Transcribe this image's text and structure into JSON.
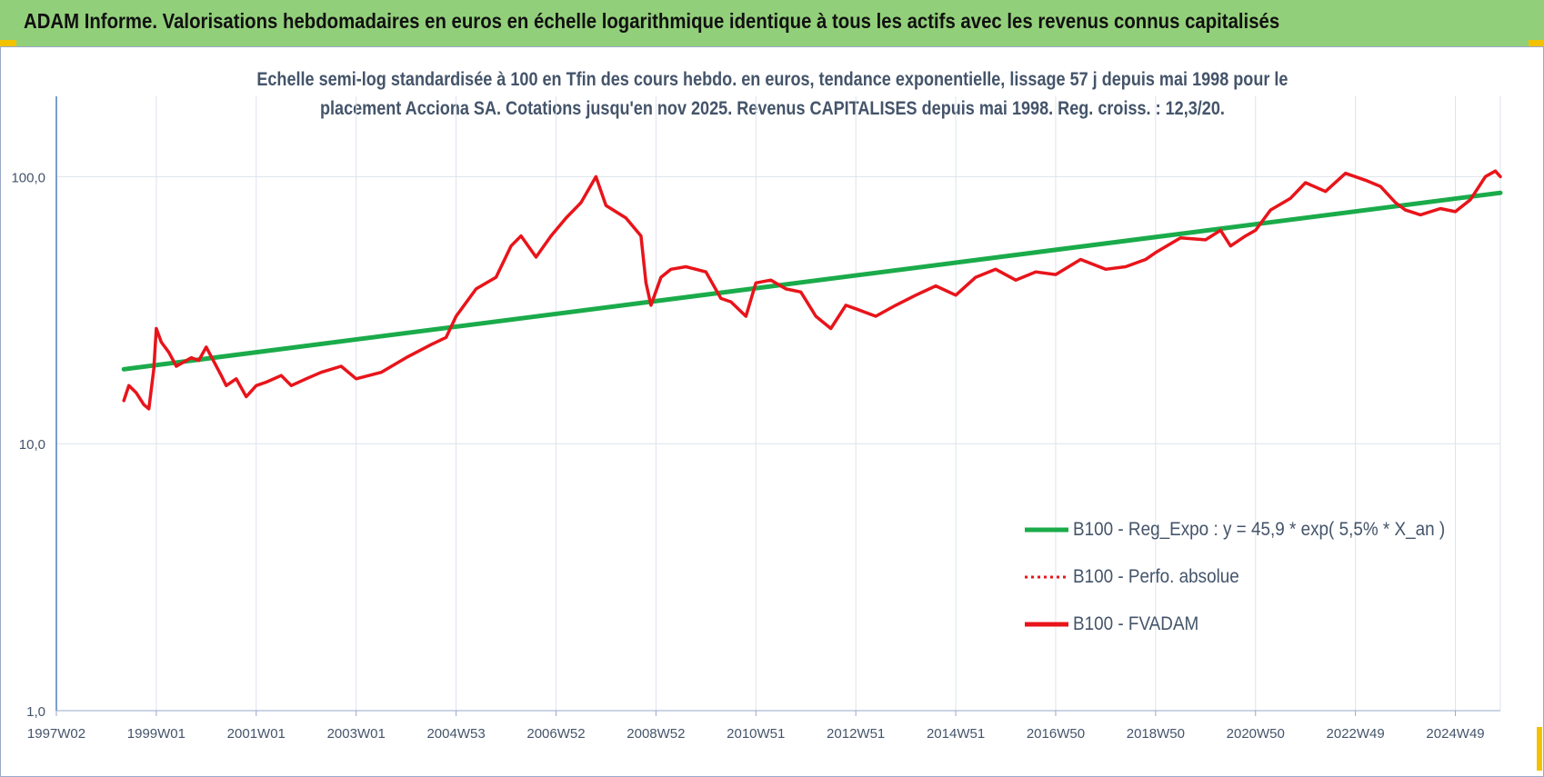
{
  "header": {
    "title": "ADAM Informe. Valorisations hebdomadaires en euros en échelle logarithmique identique à tous les actifs avec les revenus connus capitalisés"
  },
  "colors": {
    "header_bg": "#92cf7a",
    "corner_accent": "#f2c200",
    "fvadam": "#e8141a",
    "regression": "#1aab4a",
    "perfo": "#e8141a",
    "text": "#44546a"
  },
  "chart_data": {
    "type": "line",
    "title_lines": [
      "Echelle semi-log standardisée à 100 en Tfin des cours hebdo. en euros, tendance exponentielle, lissage 57 j depuis mai 1998 pour le",
      "placement Acciona SA. Cotations jusqu'en nov 2025. Revenus CAPITALISES depuis mai 1998. Reg. croiss. : 12,3/20."
    ],
    "y_scale": "log",
    "ylim": [
      1,
      200
    ],
    "y_ticks": [
      {
        "value": 100,
        "label": "100,0"
      },
      {
        "value": 10,
        "label": "10,0"
      },
      {
        "value": 1,
        "label": "1,0"
      }
    ],
    "xlim": [
      1997.0,
      2025.9
    ],
    "x_ticks": [
      {
        "value": 1997.0,
        "label": "1997W02"
      },
      {
        "value": 1999.0,
        "label": "1999W01"
      },
      {
        "value": 2001.0,
        "label": "2001W01"
      },
      {
        "value": 2003.0,
        "label": "2003W01"
      },
      {
        "value": 2005.0,
        "label": "2004W53"
      },
      {
        "value": 2007.0,
        "label": "2006W52"
      },
      {
        "value": 2009.0,
        "label": "2008W52"
      },
      {
        "value": 2011.0,
        "label": "2010W51"
      },
      {
        "value": 2013.0,
        "label": "2012W51"
      },
      {
        "value": 2015.0,
        "label": "2014W51"
      },
      {
        "value": 2017.0,
        "label": "2016W50"
      },
      {
        "value": 2019.0,
        "label": "2018W50"
      },
      {
        "value": 2021.0,
        "label": "2020W50"
      },
      {
        "value": 2023.0,
        "label": "2022W49"
      },
      {
        "value": 2025.0,
        "label": "2024W49"
      }
    ],
    "grid": "vertical",
    "legend_position": "right",
    "legend": [
      {
        "name": "B100 - Reg_Expo : y = 45,9 * exp( 5,5% *  X_an )",
        "style": "solid",
        "color": "#1aab4a"
      },
      {
        "name": "B100 - Perfo. absolue",
        "style": "dotted",
        "color": "#e8141a"
      },
      {
        "name": "B100 - FVADAM",
        "style": "solid",
        "color": "#e8141a"
      }
    ],
    "series": [
      {
        "name": "B100 - Reg_Expo : y = 45,9 * exp( 5,5% *  X_an )",
        "x": [
          1998.35,
          2025.9
        ],
        "y": [
          19.0,
          87.0
        ]
      },
      {
        "name": "B100 - FVADAM",
        "x": [
          1998.35,
          1998.45,
          1998.6,
          1998.75,
          1998.85,
          1998.95,
          1999.0,
          1999.1,
          1999.25,
          1999.4,
          1999.5,
          1999.7,
          1999.85,
          2000.0,
          2000.3,
          2000.4,
          2000.6,
          2000.8,
          2001.0,
          2001.2,
          2001.5,
          2001.7,
          2002.0,
          2002.3,
          2002.7,
          2003.0,
          2003.5,
          2004.0,
          2004.5,
          2004.8,
          2005.0,
          2005.4,
          2005.8,
          2006.1,
          2006.3,
          2006.6,
          2006.9,
          2007.2,
          2007.5,
          2007.8,
          2008.0,
          2008.4,
          2008.7,
          2008.8,
          2008.9,
          2009.1,
          2009.3,
          2009.6,
          2010.0,
          2010.3,
          2010.5,
          2010.8,
          2011.0,
          2011.3,
          2011.6,
          2011.9,
          2012.2,
          2012.5,
          2012.8,
          2013.0,
          2013.4,
          2013.8,
          2014.2,
          2014.6,
          2015.0,
          2015.4,
          2015.8,
          2016.2,
          2016.6,
          2017.0,
          2017.5,
          2018.0,
          2018.4,
          2018.8,
          2019.0,
          2019.5,
          2020.0,
          2020.3,
          2020.5,
          2020.8,
          2021.0,
          2021.3,
          2021.7,
          2022.0,
          2022.4,
          2022.8,
          2023.2,
          2023.5,
          2023.8,
          2024.0,
          2024.3,
          2024.7,
          2025.0,
          2025.3,
          2025.6,
          2025.8,
          2025.9
        ],
        "y": [
          14.5,
          16.5,
          15.5,
          14.0,
          13.5,
          19.0,
          27.0,
          24.0,
          22.0,
          19.5,
          20.0,
          21.0,
          20.5,
          23.0,
          18.0,
          16.5,
          17.5,
          15.0,
          16.5,
          17.0,
          18.0,
          16.5,
          17.5,
          18.5,
          19.5,
          17.5,
          18.5,
          21.0,
          23.5,
          25.0,
          30.0,
          38.0,
          42.0,
          55.0,
          60.0,
          50.0,
          60.0,
          70.0,
          80.0,
          100.0,
          78.0,
          70.0,
          60.0,
          40.0,
          33.0,
          42.0,
          45.0,
          46.0,
          44.0,
          35.0,
          34.0,
          30.0,
          40.0,
          41.0,
          38.0,
          37.0,
          30.0,
          27.0,
          33.0,
          32.0,
          30.0,
          33.0,
          36.0,
          39.0,
          36.0,
          42.0,
          45.0,
          41.0,
          44.0,
          43.0,
          49.0,
          45.0,
          46.0,
          49.0,
          52.0,
          59.0,
          58.0,
          63.0,
          55.0,
          60.0,
          63.0,
          75.0,
          83.0,
          95.0,
          88.0,
          103.0,
          97.0,
          92.0,
          80.0,
          75.0,
          72.0,
          76.0,
          74.0,
          82.0,
          100.0,
          105.0,
          100.0
        ]
      }
    ]
  }
}
